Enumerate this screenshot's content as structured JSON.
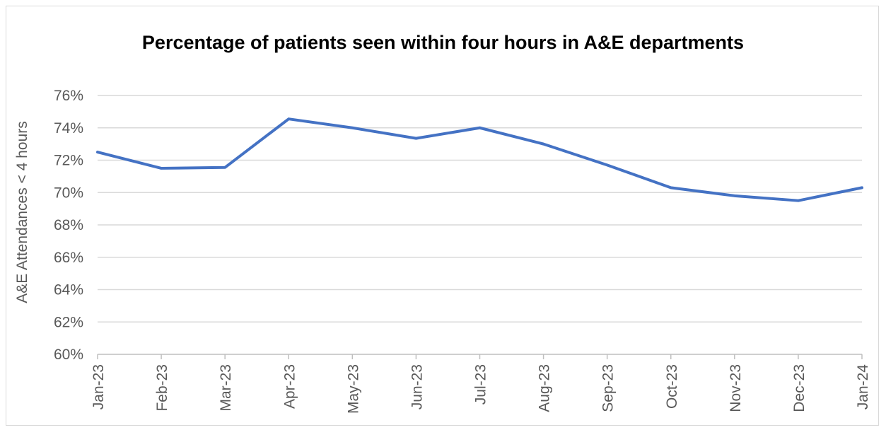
{
  "chart_data": {
    "type": "line",
    "title": "Percentage of patients seen within four hours in A&E departments",
    "xlabel": "",
    "ylabel": "A&E Attendances < 4 hours",
    "categories": [
      "Jan-23",
      "Feb-23",
      "Mar-23",
      "Apr-23",
      "May-23",
      "Jun-23",
      "Jul-23",
      "Aug-23",
      "Sep-23",
      "Oct-23",
      "Nov-23",
      "Dec-23",
      "Jan-24"
    ],
    "series": [
      {
        "values": [
          72.5,
          71.5,
          71.55,
          74.55,
          74.0,
          73.35,
          74.0,
          73.0,
          71.7,
          70.3,
          69.8,
          69.5,
          70.3
        ]
      }
    ],
    "ylim": [
      60,
      76
    ],
    "yticks": [
      "60%",
      "62%",
      "64%",
      "66%",
      "68%",
      "70%",
      "72%",
      "74%",
      "76%"
    ],
    "grid": true,
    "line_color": "#4472c4"
  }
}
